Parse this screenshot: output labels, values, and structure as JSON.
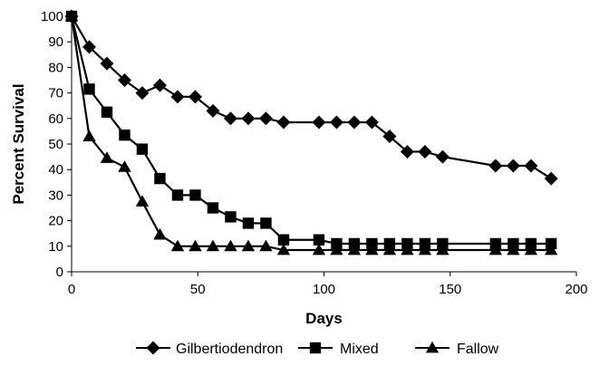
{
  "chart_data": {
    "type": "line",
    "title": "",
    "xlabel": "Days",
    "ylabel": "Percent Survival",
    "xlim": [
      0,
      200
    ],
    "ylim": [
      0,
      100
    ],
    "xticks": [
      0,
      50,
      100,
      150,
      200
    ],
    "yticks": [
      0,
      10,
      20,
      30,
      40,
      50,
      60,
      70,
      80,
      90,
      100
    ],
    "grid": false,
    "legend_position": "bottom",
    "series": [
      {
        "name": "Gilbertiodendron",
        "marker": "diamond",
        "color": "#000000",
        "x": [
          0,
          7,
          14,
          21,
          28,
          35,
          42,
          49,
          56,
          63,
          70,
          77,
          84,
          98,
          105,
          112,
          119,
          126,
          133,
          140,
          147,
          168,
          175,
          182,
          190
        ],
        "y": [
          100,
          88,
          81.5,
          75,
          70,
          73,
          68.5,
          68.5,
          63,
          60,
          60,
          60,
          58.5,
          58.5,
          58.5,
          58.5,
          58.5,
          53,
          47,
          47,
          45,
          41.5,
          41.5,
          41.5,
          36.5
        ]
      },
      {
        "name": "Mixed",
        "marker": "square",
        "color": "#000000",
        "x": [
          0,
          7,
          14,
          21,
          28,
          35,
          42,
          49,
          56,
          63,
          70,
          77,
          84,
          98,
          105,
          112,
          119,
          126,
          133,
          140,
          147,
          168,
          175,
          182,
          190
        ],
        "y": [
          100,
          71.5,
          62.5,
          53.5,
          48,
          36.5,
          30,
          30,
          25,
          21.5,
          19,
          19,
          12.5,
          12.5,
          11,
          11,
          11,
          11,
          11,
          11,
          11,
          11,
          11,
          11,
          11
        ]
      },
      {
        "name": "Fallow",
        "marker": "triangle",
        "color": "#000000",
        "x": [
          0,
          7,
          14,
          21,
          28,
          35,
          42,
          49,
          56,
          63,
          70,
          77,
          84,
          98,
          105,
          112,
          119,
          126,
          133,
          140,
          147,
          168,
          175,
          182,
          190
        ],
        "y": [
          100,
          53,
          44.5,
          41,
          27.5,
          14.5,
          10,
          10,
          10,
          10,
          10,
          10,
          8.5,
          8.5,
          8.5,
          8.5,
          8.5,
          8.5,
          8.5,
          8.5,
          8.5,
          8.5,
          8.5,
          8.5,
          8.5
        ]
      }
    ]
  }
}
